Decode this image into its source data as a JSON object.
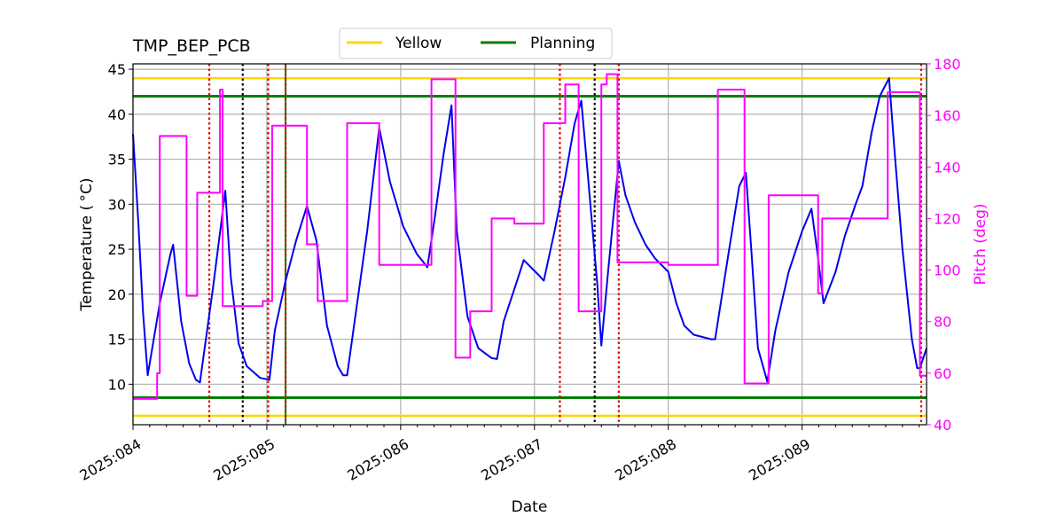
{
  "chart_data": {
    "type": "line",
    "title": "TMP_BEP_PCB",
    "xlabel": "Date",
    "ylabel": "Temperature ($^\\circ$C)",
    "ylabel_display": "Temperature ( °C)",
    "y2label": "Pitch (deg)",
    "xlim": [
      84.0,
      89.93
    ],
    "ylim": [
      5.5,
      45.6
    ],
    "y2lim": [
      40,
      180
    ],
    "x_ticks": [
      84,
      85,
      86,
      87,
      88,
      89
    ],
    "x_tick_labels": [
      "2025:084",
      "2025:085",
      "2025:086",
      "2025:087",
      "2025:088",
      "2025:089"
    ],
    "y_ticks": [
      10,
      15,
      20,
      25,
      30,
      35,
      40,
      45
    ],
    "y_tick_labels": [
      "10",
      "15",
      "20",
      "25",
      "30",
      "35",
      "40",
      "45"
    ],
    "y2_ticks": [
      40,
      60,
      80,
      100,
      120,
      140,
      160,
      180
    ],
    "y2_tick_labels": [
      "40",
      "60",
      "80",
      "100",
      "120",
      "140",
      "160",
      "180"
    ],
    "grid": true,
    "legend_position": "top-center",
    "legend": [
      {
        "label": "Yellow",
        "color": "#FFD700"
      },
      {
        "label": "Planning",
        "color": "#008000"
      }
    ],
    "colors": {
      "temperature": "#0000EE",
      "pitch": "#FF00FF",
      "yellow": "#FFD700",
      "planning": "#008000",
      "red": "#DD0000",
      "black": "#000000"
    },
    "limit_lines": {
      "yellow": [
        44.0,
        6.5
      ],
      "planning": [
        42.0,
        8.5
      ]
    },
    "vlines": {
      "red_dotted": [
        84.57,
        85.01,
        85.14,
        87.19,
        87.63,
        89.89
      ],
      "black_dotted": [
        84.82,
        87.45
      ],
      "green_solid": [
        85.14
      ]
    },
    "series": [
      {
        "axis": "temperature",
        "color": "#0000EE",
        "x": [
          84.0,
          84.04,
          84.075,
          84.11,
          84.2,
          84.28,
          84.3,
          84.36,
          84.42,
          84.47,
          84.5,
          84.6,
          84.69,
          84.73,
          84.79,
          84.85,
          84.95,
          85.02,
          85.06,
          85.14,
          85.22,
          85.3,
          85.37,
          85.45,
          85.53,
          85.57,
          85.6,
          85.75,
          85.84,
          85.92,
          86.02,
          86.12,
          86.2,
          86.25,
          86.32,
          86.38,
          86.42,
          86.5,
          86.58,
          86.68,
          86.72,
          86.77,
          86.87,
          86.92,
          87.04,
          87.07,
          87.15,
          87.23,
          87.3,
          87.35,
          87.4,
          87.47,
          87.5,
          87.55,
          87.63,
          87.68,
          87.75,
          87.83,
          87.9,
          88.0,
          88.06,
          88.12,
          88.19,
          88.32,
          88.35,
          88.45,
          88.53,
          88.58,
          88.62,
          88.67,
          88.74,
          88.8,
          88.9,
          89.0,
          89.07,
          89.12,
          89.16,
          89.25,
          89.32,
          89.4,
          89.45,
          89.52,
          89.58,
          89.65,
          89.69,
          89.75,
          89.82,
          89.86,
          89.88,
          89.93
        ],
        "y": [
          37.8,
          28.0,
          18.0,
          11.0,
          19.0,
          24.5,
          25.5,
          17.0,
          12.3,
          10.5,
          10.2,
          21.0,
          31.5,
          22.0,
          14.5,
          12.0,
          10.7,
          10.5,
          16.0,
          21.5,
          26.0,
          29.8,
          26.0,
          16.5,
          12.0,
          11.0,
          11.0,
          27.0,
          38.5,
          32.5,
          27.5,
          24.5,
          23.0,
          28.0,
          35.5,
          41.0,
          27.0,
          17.5,
          14.0,
          12.9,
          12.8,
          17.0,
          21.5,
          23.8,
          22.0,
          21.5,
          27.0,
          33.0,
          39.0,
          41.5,
          33.0,
          21.0,
          14.3,
          22.5,
          34.8,
          31.0,
          28.0,
          25.5,
          24.0,
          22.5,
          19.0,
          16.5,
          15.5,
          15.0,
          15.0,
          24.5,
          32.0,
          33.5,
          25.0,
          14.0,
          10.3,
          16.0,
          22.5,
          27.0,
          29.5,
          24.0,
          19.0,
          22.5,
          26.5,
          30.0,
          32.0,
          38.0,
          42.0,
          44.0,
          36.0,
          25.0,
          15.0,
          11.8,
          11.8,
          14.0
        ]
      },
      {
        "axis": "pitch",
        "color": "#FF00FF",
        "x": [
          84.0,
          84.18,
          84.18,
          84.2,
          84.2,
          84.4,
          84.4,
          84.48,
          84.48,
          84.65,
          84.65,
          84.67,
          84.67,
          84.78,
          84.78,
          84.88,
          84.88,
          84.97,
          84.97,
          85.04,
          85.04,
          85.12,
          85.12,
          85.3,
          85.3,
          85.38,
          85.38,
          85.58,
          85.58,
          85.6,
          85.6,
          85.84,
          85.84,
          86.22,
          86.22,
          86.23,
          86.23,
          86.41,
          86.41,
          86.44,
          86.44,
          86.52,
          86.52,
          86.68,
          86.68,
          86.85,
          86.85,
          87.05,
          87.05,
          87.07,
          87.07,
          87.21,
          87.21,
          87.23,
          87.23,
          87.33,
          87.33,
          87.47,
          87.47,
          87.5,
          87.5,
          87.54,
          87.54,
          87.62,
          87.62,
          87.66,
          87.66,
          88.0,
          88.0,
          88.33,
          88.33,
          88.37,
          88.37,
          88.54,
          88.54,
          88.57,
          88.57,
          88.75,
          88.75,
          89.07,
          89.07,
          89.12,
          89.12,
          89.15,
          89.15,
          89.48,
          89.48,
          89.64,
          89.64,
          89.78,
          89.78,
          89.88,
          89.88,
          89.93
        ],
        "y": [
          50,
          50,
          60,
          60,
          152,
          152,
          90,
          90,
          130,
          130,
          170,
          170,
          86,
          86,
          86,
          86,
          86,
          86,
          88,
          88,
          156,
          156,
          156,
          156,
          110,
          110,
          88,
          88,
          88,
          88,
          157,
          157,
          102,
          102,
          102,
          102,
          174,
          174,
          66,
          66,
          66,
          66,
          84,
          84,
          120,
          120,
          118,
          118,
          118,
          118,
          157,
          157,
          157,
          157,
          172,
          172,
          84,
          84,
          84,
          84,
          172,
          172,
          176,
          176,
          103,
          103,
          103,
          103,
          102,
          102,
          102,
          102,
          170,
          170,
          170,
          170,
          56,
          56,
          129,
          129,
          129,
          129,
          91,
          91,
          120,
          120,
          120,
          120,
          169,
          169,
          169,
          169,
          59,
          59
        ]
      }
    ]
  }
}
